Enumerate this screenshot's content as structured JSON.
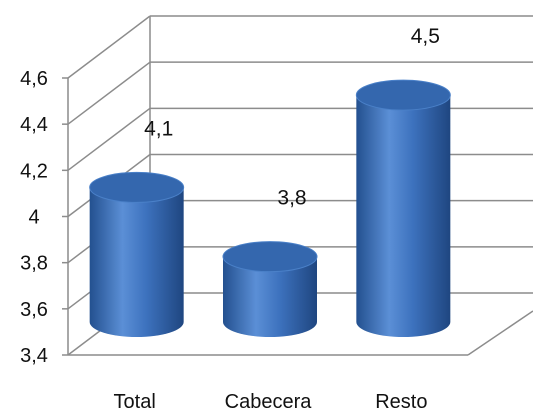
{
  "chart_data": {
    "type": "bar",
    "style": "3d-cylinder",
    "categories": [
      "Total",
      "Cabecera",
      "Resto"
    ],
    "values": [
      4.1,
      3.8,
      4.5
    ],
    "data_labels": [
      "4,1",
      "3,8",
      "4,5"
    ],
    "title": "",
    "xlabel": "",
    "ylabel": "",
    "ylim": [
      3.4,
      4.6
    ],
    "yticks": [
      3.4,
      3.6,
      3.8,
      4.0,
      4.2,
      4.4,
      4.6
    ],
    "ytick_labels": [
      "3,4",
      "3,6",
      "3,8",
      "4",
      "4,2",
      "4,4",
      "4,6"
    ],
    "grid": true,
    "legend": "none",
    "colors": {
      "bar_light": "#5b8fd6",
      "bar_mid": "#3d72be",
      "bar_dark": "#23508f",
      "bar_top": "#3467ae",
      "grid": "#8c8c8c"
    }
  }
}
